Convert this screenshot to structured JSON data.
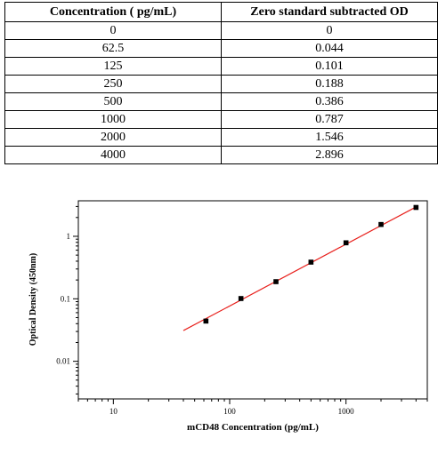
{
  "table": {
    "headers": [
      "Concentration ( pg/mL)",
      "Zero standard subtracted OD"
    ],
    "rows": [
      [
        "0",
        "0"
      ],
      [
        "62.5",
        "0.044"
      ],
      [
        "125",
        "0.101"
      ],
      [
        "250",
        "0.188"
      ],
      [
        "500",
        "0.386"
      ],
      [
        "1000",
        "0.787"
      ],
      [
        "2000",
        "1.546"
      ],
      [
        "4000",
        "2.896"
      ]
    ]
  },
  "chart_data": {
    "type": "scatter",
    "title": "",
    "xlabel": "mCD48 Concentration (pg/mL)",
    "ylabel": "Optical Density (450nm)",
    "x_scale": "log",
    "y_scale": "log",
    "xlim": [
      5,
      5000
    ],
    "ylim": [
      0.0025,
      3.7
    ],
    "x_ticks": [
      10,
      100,
      1000
    ],
    "x_tick_labels": [
      "10",
      "100",
      "1000"
    ],
    "y_ticks": [
      0.01,
      0.1,
      1
    ],
    "y_tick_labels": [
      "0.01",
      "0.1",
      "1"
    ],
    "grid": false,
    "series": [
      {
        "marker": "square",
        "color": "#000000",
        "x": [
          62.5,
          125,
          250,
          500,
          1000,
          2000,
          4000
        ],
        "y": [
          0.044,
          0.101,
          0.188,
          0.386,
          0.787,
          1.546,
          2.896
        ]
      }
    ],
    "fit_line": {
      "color": "#e8201c",
      "x": [
        40,
        4000
      ],
      "y": [
        0.031,
        2.95
      ]
    }
  }
}
